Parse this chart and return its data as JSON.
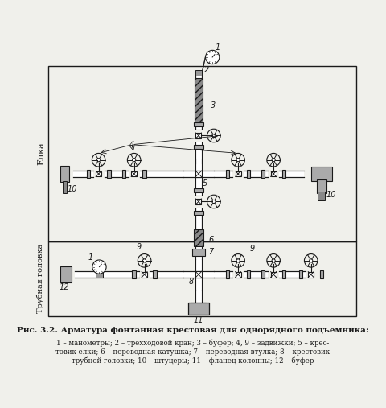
{
  "title": "Рис. 3.2. Арматура фонтанная крестовая для однорядного подъемника:",
  "caption_line1": "1 – манометры; 2 – трехходовой кран; 3 – буфер; 4, 9 – задвижки; 5 – крес-",
  "caption_line2": "товик елки; 6 – переводная катушка; 7 – переводная втулка; 8 – крестовик",
  "caption_line3": "трубной головки; 10 – штуцеры; 11 – фланец колонны; 12 – буфер",
  "elka_label": "Елка",
  "trub_label": "Трубная головка",
  "bg_color": "#f0f0eb",
  "line_color": "#1a1a1a",
  "fig_width": 4.8,
  "fig_height": 5.07
}
